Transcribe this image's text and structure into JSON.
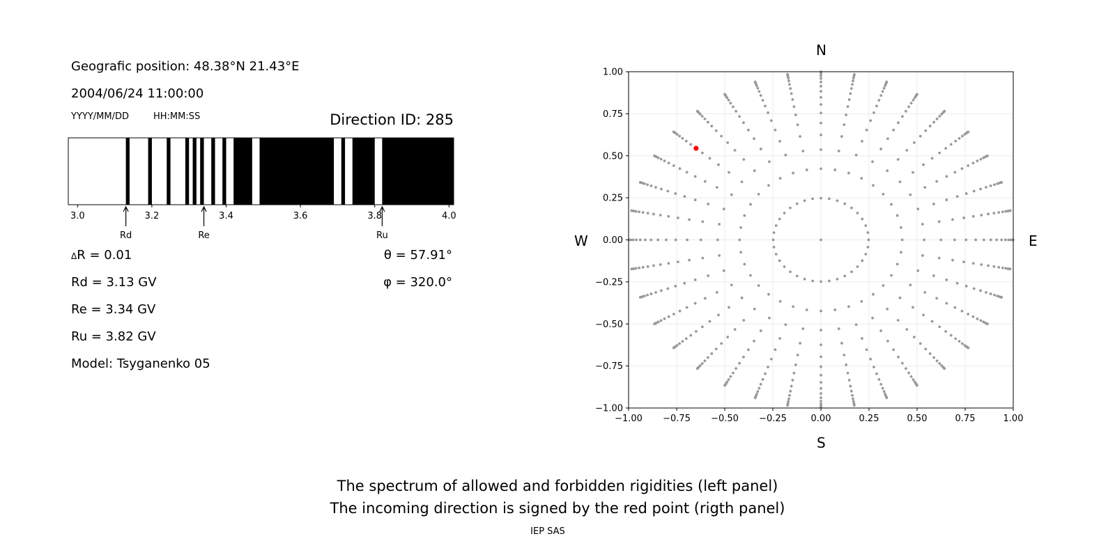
{
  "left_panel": {
    "position": "Geografic position: 48.38°N 21.43°E",
    "datetime": "2004/06/24 11:00:00",
    "date_format": "YYYY/MM/DD",
    "time_format": "HH:MM:SS",
    "direction_id": "Direction ID: 285",
    "delta_symbol": "Δ",
    "delta_r": "R = 0.01",
    "theta": "θ = 57.91°",
    "phi": "φ = 320.0°",
    "rd": "Rd = 3.13 GV",
    "re": "Re = 3.34 GV",
    "ru": "Ru = 3.82 GV",
    "model": "Model: Tsyganenko 05"
  },
  "right_panel": {
    "north": "N",
    "south": "S",
    "west": "W",
    "east": "E"
  },
  "captions": {
    "line1": "The spectrum of allowed and forbidden rigidities (left panel)",
    "line2": "The incoming direction is signed by the red point (rigth panel)",
    "credit": "IEP SAS"
  },
  "chart_data": [
    {
      "type": "bar",
      "xlim": [
        2.975,
        4.0125
      ],
      "bin_width": 0.01,
      "colors": {
        "forbidden": "#000000",
        "allowed": "#ffffff"
      },
      "forbidden_bands": [
        [
          3.13,
          3.14
        ],
        [
          3.19,
          3.2
        ],
        [
          3.24,
          3.25
        ],
        [
          3.29,
          3.3
        ],
        [
          3.31,
          3.32
        ],
        [
          3.33,
          3.34
        ],
        [
          3.36,
          3.37
        ],
        [
          3.39,
          3.4
        ],
        [
          3.42,
          3.47
        ],
        [
          3.49,
          3.69
        ],
        [
          3.71,
          3.72
        ],
        [
          3.74,
          3.8
        ],
        [
          3.82,
          4.0125
        ]
      ],
      "xticks": [
        "3.0",
        "3.2",
        "3.4",
        "3.6",
        "3.8",
        "4.0"
      ],
      "markers": [
        {
          "label": "Rd",
          "value": 3.13
        },
        {
          "label": "Re",
          "value": 3.34
        },
        {
          "label": "Ru",
          "value": 3.82
        }
      ]
    },
    {
      "type": "scatter",
      "xlim": [
        -1,
        1
      ],
      "ylim": [
        -1,
        1
      ],
      "grid": true,
      "xticks": [
        "−1.00",
        "−0.75",
        "−0.50",
        "−0.25",
        "0.00",
        "0.25",
        "0.50",
        "0.75",
        "1.00"
      ],
      "yticks": [
        "−1.00",
        "−0.75",
        "−0.50",
        "−0.25",
        "0.00",
        "0.25",
        "0.50",
        "0.75",
        "1.00"
      ],
      "grid_points": {
        "azimuth_step_deg": 10,
        "cos_zenith": [
          0.96875,
          0.90625,
          0.84375,
          0.78125,
          0.71875,
          0.65625,
          0.59375,
          0.53125,
          0.46875,
          0.40625,
          0.34375,
          0.28125,
          0.21875,
          0.15625,
          0.09375,
          0.03125
        ],
        "center_point": true,
        "color": "#999999"
      },
      "highlight": {
        "theta_deg": 57.91,
        "phi_deg": 320.0,
        "color": "#ff0000"
      }
    }
  ]
}
